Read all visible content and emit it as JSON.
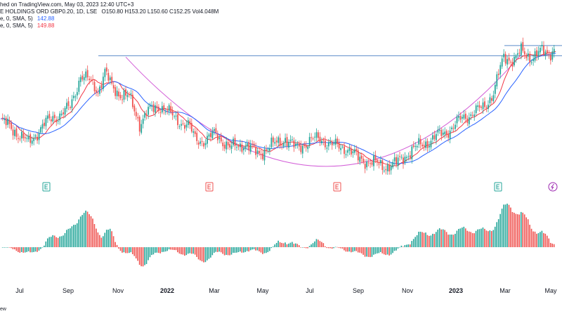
{
  "header": {
    "line1": "hed on TradingView.com, May 03, 2023 12:40 UTC+3",
    "line2_prefix": "E HOLDINGS ORD GBP0.20, 1D, LSE",
    "ohlc": "O150.80  H153.20  L150.60  C152.25  Vol4.048M",
    "ma1_label": "e, 0, SMA, 5)",
    "ma1_value": "142.88",
    "ma2_label": "e, 0, SMA, 5)",
    "ma2_value": "149.88"
  },
  "footer": {
    "text": "ew"
  },
  "colors": {
    "up": "#26a69a",
    "down": "#ef5350",
    "ma_fast": "#f23645",
    "ma_slow": "#2962ff",
    "cup_arc": "#d35fd8",
    "resistance": "#5b8cc9",
    "event_icon_up": "#26a69a",
    "event_icon_down": "#ef5350",
    "split_icon": "#9c27b0"
  },
  "icons": [
    "earnings-icon",
    "earnings-icon",
    "earnings-icon",
    "earnings-icon",
    "split-icon"
  ],
  "chart_data": {
    "type": "candlestick",
    "x_ticks": [
      {
        "label": "Jul",
        "bold": false
      },
      {
        "label": "Sep",
        "bold": false
      },
      {
        "label": "Nov",
        "bold": false
      },
      {
        "label": "2022",
        "bold": true
      },
      {
        "label": "Mar",
        "bold": false
      },
      {
        "label": "May",
        "bold": false
      },
      {
        "label": "Jul",
        "bold": false
      },
      {
        "label": "Sep",
        "bold": false
      },
      {
        "label": "Nov",
        "bold": false
      },
      {
        "label": "2023",
        "bold": true
      },
      {
        "label": "Mar",
        "bold": false
      },
      {
        "label": "May",
        "bold": false
      }
    ],
    "price_anchors": [
      [
        0,
        123
      ],
      [
        8,
        119
      ],
      [
        16,
        114
      ],
      [
        24,
        121
      ],
      [
        30,
        124
      ],
      [
        40,
        128
      ],
      [
        46,
        141
      ],
      [
        50,
        139
      ],
      [
        56,
        135
      ],
      [
        60,
        142
      ],
      [
        64,
        136
      ],
      [
        68,
        134
      ],
      [
        74,
        132
      ],
      [
        80,
        122
      ],
      [
        84,
        126
      ],
      [
        92,
        129
      ],
      [
        100,
        124
      ],
      [
        108,
        121
      ],
      [
        112,
        116
      ],
      [
        118,
        115
      ],
      [
        124,
        118
      ],
      [
        132,
        112
      ],
      [
        140,
        114
      ],
      [
        148,
        110
      ],
      [
        156,
        113
      ],
      [
        164,
        116
      ],
      [
        170,
        112
      ],
      [
        178,
        115
      ],
      [
        184,
        116
      ],
      [
        192,
        113
      ],
      [
        200,
        112
      ],
      [
        206,
        108
      ],
      [
        212,
        107
      ],
      [
        220,
        105
      ],
      [
        228,
        106
      ],
      [
        236,
        111
      ],
      [
        244,
        114
      ],
      [
        252,
        117
      ],
      [
        260,
        120
      ],
      [
        266,
        124
      ],
      [
        272,
        126
      ],
      [
        278,
        128
      ],
      [
        284,
        134
      ],
      [
        290,
        148
      ],
      [
        296,
        147
      ],
      [
        300,
        150
      ],
      [
        306,
        148
      ],
      [
        312,
        150
      ],
      [
        316,
        149.5
      ],
      [
        320,
        152
      ]
    ],
    "cup_arc": {
      "start_x": 72,
      "start_price": 148,
      "bottom_x": 190,
      "bottom_price": 105,
      "end_x": 300,
      "end_price": 149
    },
    "resistance_price": 148.5,
    "resistance_upper": 152.5,
    "y_range": [
      100,
      158
    ],
    "osc_range": [
      -1,
      1
    ]
  }
}
